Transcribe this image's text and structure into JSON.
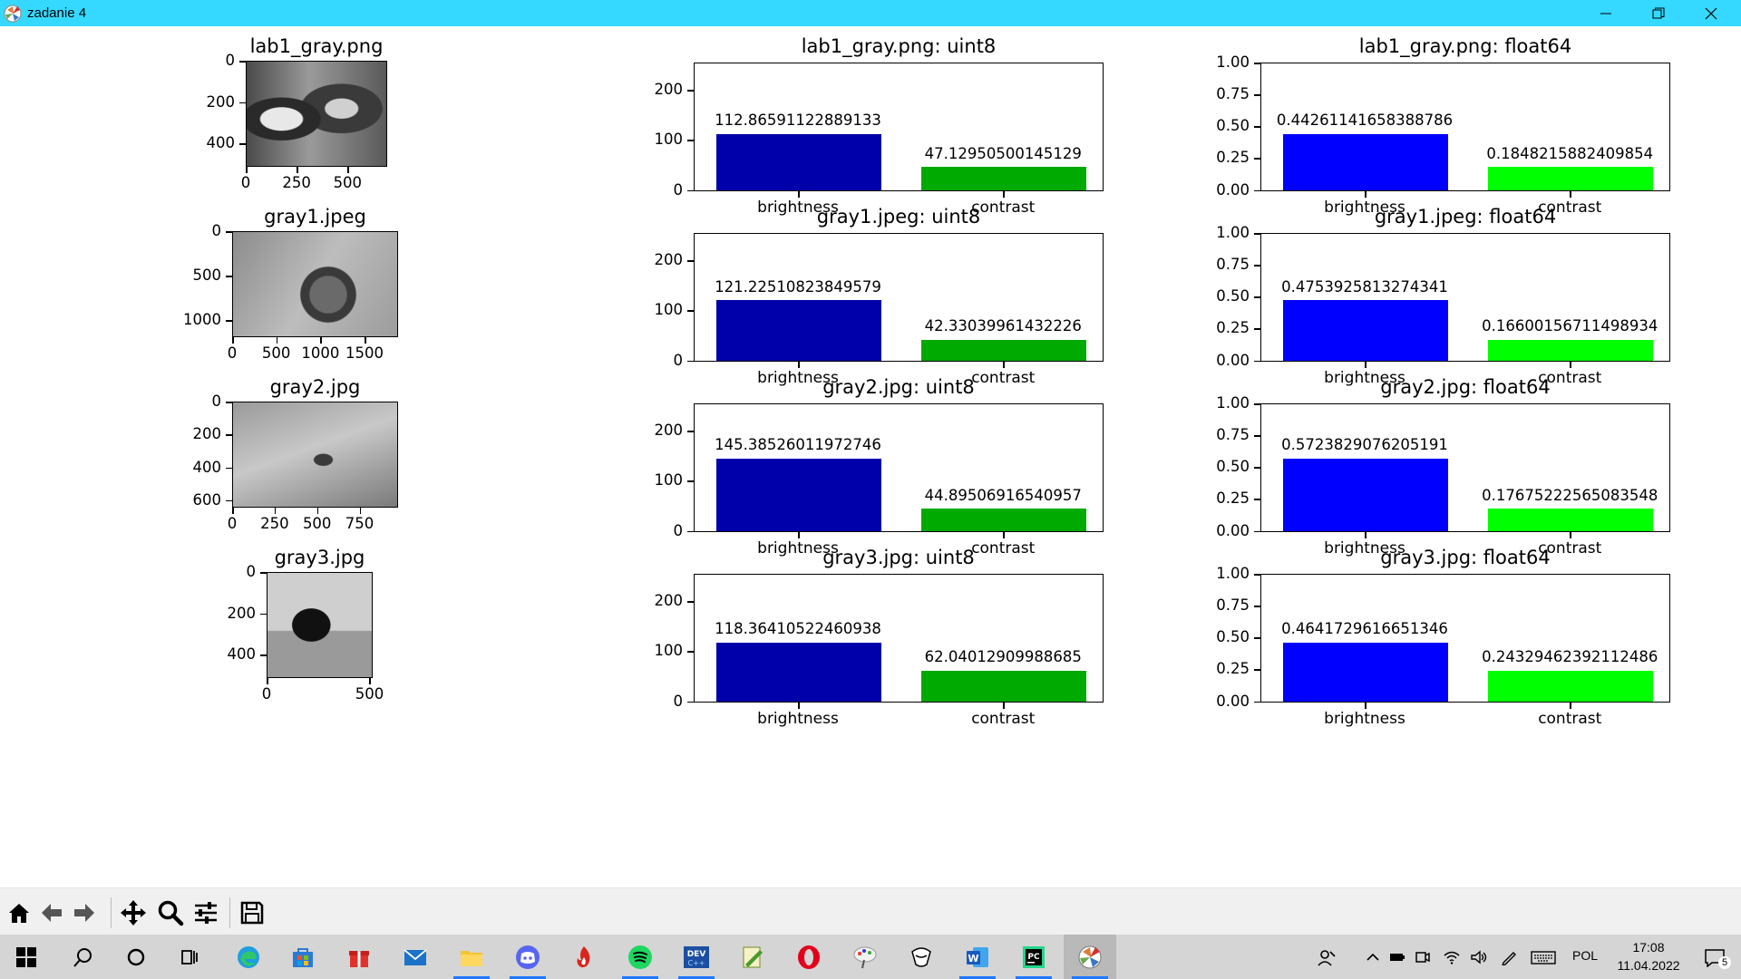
{
  "window": {
    "title": "zadanie 4"
  },
  "colors": {
    "titlebar": "#35d9ff",
    "uint8_brightness": "#0000aa",
    "uint8_contrast": "#00aa00",
    "float64_brightness": "#0000ff",
    "float64_contrast": "#00ff00"
  },
  "images": [
    {
      "title": "lab1_gray.png",
      "yticks": [
        "0",
        "200",
        "400"
      ],
      "xticks": [
        "0",
        "250",
        "500"
      ],
      "icon": "parrots-image"
    },
    {
      "title": "gray1.jpeg",
      "yticks": [
        "0",
        "500",
        "1000"
      ],
      "xticks": [
        "0",
        "500",
        "1000",
        "1500"
      ],
      "icon": "apple-image"
    },
    {
      "title": "gray2.jpg",
      "yticks": [
        "0",
        "200",
        "400",
        "600"
      ],
      "xticks": [
        "0",
        "250",
        "500",
        "750"
      ],
      "icon": "bird-image"
    },
    {
      "title": "gray3.jpg",
      "yticks": [
        "0",
        "200",
        "400"
      ],
      "xticks": [
        "0",
        "500"
      ],
      "icon": "cameraman-image"
    }
  ],
  "chart_data": [
    {
      "type": "bar",
      "title": "lab1_gray.png: uint8",
      "categories": [
        "brightness",
        "contrast"
      ],
      "values": [
        112.86591122889133,
        47.12950500145129
      ],
      "labels": [
        "112.86591122889133",
        "47.12950500145129"
      ],
      "ylim": [
        0,
        255
      ],
      "yticks": [
        "0",
        "100",
        "200"
      ]
    },
    {
      "type": "bar",
      "title": "lab1_gray.png: float64",
      "categories": [
        "brightness",
        "contrast"
      ],
      "values": [
        0.44261141658388786,
        0.1848215882409854
      ],
      "labels": [
        "0.44261141658388786",
        "0.1848215882409854"
      ],
      "ylim": [
        0,
        1
      ],
      "yticks": [
        "0.00",
        "0.25",
        "0.50",
        "0.75",
        "1.00"
      ]
    },
    {
      "type": "bar",
      "title": "gray1.jpeg: uint8",
      "categories": [
        "brightness",
        "contrast"
      ],
      "values": [
        121.22510823849579,
        42.33039961432226
      ],
      "labels": [
        "121.22510823849579",
        "42.33039961432226"
      ],
      "ylim": [
        0,
        255
      ],
      "yticks": [
        "0",
        "100",
        "200"
      ]
    },
    {
      "type": "bar",
      "title": "gray1.jpeg: float64",
      "categories": [
        "brightness",
        "contrast"
      ],
      "values": [
        0.4753925813274341,
        0.16600156711498934
      ],
      "labels": [
        "0.4753925813274341",
        "0.16600156711498934"
      ],
      "ylim": [
        0,
        1
      ],
      "yticks": [
        "0.00",
        "0.25",
        "0.50",
        "0.75",
        "1.00"
      ]
    },
    {
      "type": "bar",
      "title": "gray2.jpg: uint8",
      "categories": [
        "brightness",
        "contrast"
      ],
      "values": [
        145.38526011972746,
        44.89506916540957
      ],
      "labels": [
        "145.38526011972746",
        "44.89506916540957"
      ],
      "ylim": [
        0,
        255
      ],
      "yticks": [
        "0",
        "100",
        "200"
      ]
    },
    {
      "type": "bar",
      "title": "gray2.jpg: float64",
      "categories": [
        "brightness",
        "contrast"
      ],
      "values": [
        0.5723829076205191,
        0.17675222565083548
      ],
      "labels": [
        "0.5723829076205191",
        "0.17675222565083548"
      ],
      "ylim": [
        0,
        1
      ],
      "yticks": [
        "0.00",
        "0.25",
        "0.50",
        "0.75",
        "1.00"
      ]
    },
    {
      "type": "bar",
      "title": "gray3.jpg: uint8",
      "categories": [
        "brightness",
        "contrast"
      ],
      "values": [
        118.36410522460938,
        62.04012909988685
      ],
      "labels": [
        "118.36410522460938",
        "62.04012909988685"
      ],
      "ylim": [
        0,
        255
      ],
      "yticks": [
        "0",
        "100",
        "200"
      ]
    },
    {
      "type": "bar",
      "title": "gray3.jpg: float64",
      "categories": [
        "brightness",
        "contrast"
      ],
      "values": [
        0.4641729616651346,
        0.24329462392112486
      ],
      "labels": [
        "0.4641729616651346",
        "0.24329462392112486"
      ],
      "ylim": [
        0,
        1
      ],
      "yticks": [
        "0.00",
        "0.25",
        "0.50",
        "0.75",
        "1.00"
      ]
    }
  ],
  "toolbar": {
    "buttons": [
      "home-icon",
      "back-arrow-icon",
      "forward-arrow-icon",
      "pan-icon",
      "zoom-icon",
      "configure-subplots-icon",
      "save-icon"
    ]
  },
  "taskbar": {
    "apps": [
      "start-icon",
      "search-icon",
      "cortana-icon",
      "task-view-icon",
      "edge-icon",
      "store-icon",
      "gift-icon",
      "mail-icon",
      "file-explorer-icon",
      "discord-icon",
      "fire-app-icon",
      "spotify-icon",
      "devcpp-icon",
      "notepad-app-icon",
      "opera-icon",
      "paint-app-icon",
      "inkscape-app-icon",
      "word-icon",
      "pycharm-icon",
      "python-figure-icon"
    ],
    "language": "POL",
    "time": "17:08",
    "date": "11.04.2022",
    "notifications": "5"
  }
}
